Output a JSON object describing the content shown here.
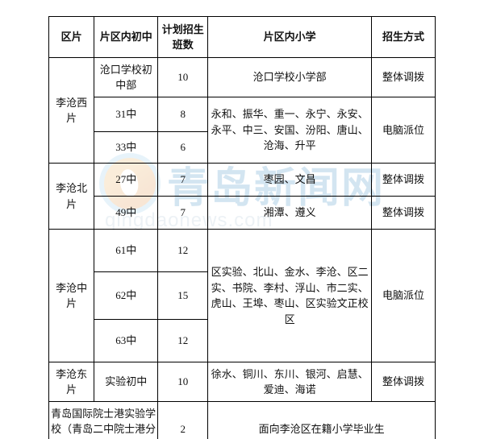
{
  "headers": {
    "region": "区片",
    "middle": "片区内初中",
    "classes": "计划招生班数",
    "primary": "片区内小学",
    "method": "招生方式"
  },
  "rows": {
    "west": {
      "region": "李沧西片",
      "m1": "沧口学校初中部",
      "c1": "10",
      "m2": "31中",
      "c2": "8",
      "m3": "33中",
      "c3": "6",
      "p1": "沧口学校小学部",
      "p2": "永和、振华、重一、永宁、永安、永平、中三、安国、汾阳、唐山、沧海、升平",
      "meth1": "整体调拨",
      "meth2": "电脑派位"
    },
    "north": {
      "region": "李沧北片",
      "m1": "27中",
      "c1": "7",
      "p1": "枣园、文昌",
      "meth1": "整体调拨",
      "m2": "49中",
      "c2": "7",
      "p2": "湘潭、遵义",
      "meth2": "整体调拨"
    },
    "mid": {
      "region": "李沧中片",
      "m1": "61中",
      "c1": "12",
      "m2": "62中",
      "c2": "15",
      "m3": "63中",
      "c3": "12",
      "p": "区实验、北山、金水、李沧、区二实、书院、李村、浮山、市二实、虎山、王埠、枣山、区实验文正校区",
      "meth": "电脑派位"
    },
    "east": {
      "region": "李沧东片",
      "m": "实验初中",
      "c": "10",
      "p": "徐水、铜川、东川、银河、启慧、爱迪、海诺",
      "meth": "整体调拨"
    },
    "special": {
      "school": "青岛国际院士港实验学校（青岛二中院士港分校）",
      "c": "2",
      "p": "面向李沧区在籍小学毕业生"
    }
  },
  "watermark": {
    "cn": "青岛新闻网",
    "en": "qingdaonews.com"
  }
}
